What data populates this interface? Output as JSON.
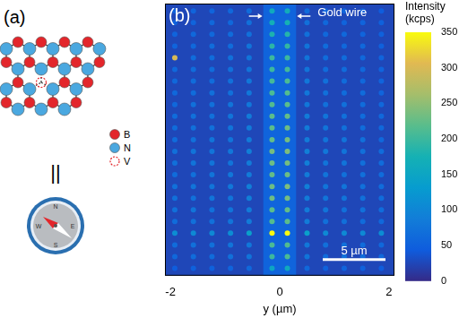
{
  "panel_a": {
    "label": "(a)",
    "legend": [
      {
        "text": "B",
        "color": "#e3262b",
        "marker": "filled"
      },
      {
        "text": "N",
        "color": "#4aa8e0",
        "marker": "filled"
      },
      {
        "text": "V",
        "color": "#e3262b",
        "marker": "dashed"
      }
    ],
    "relation": "||",
    "compass": [
      "N",
      "E",
      "S",
      "W"
    ]
  },
  "chart_data": {
    "type": "heatmap",
    "label": "(b)",
    "xlabel": "y (µm)",
    "x": [
      -1.92,
      -1.58,
      -1.24,
      -0.9,
      -0.56,
      -0.14,
      0.14,
      0.5,
      0.84,
      1.18,
      1.52,
      1.86
    ],
    "y": [
      0.6,
      1.55,
      2.5,
      3.45,
      4.4,
      5.35,
      6.3,
      7.25,
      8.2,
      9.15,
      10.1,
      11.05,
      12.0,
      12.95,
      13.9,
      14.85,
      15.8,
      16.75,
      17.7,
      18.65,
      19.6,
      20.55,
      21.5
    ],
    "cells": [
      [
        45,
        50,
        50,
        55,
        60,
        150,
        160,
        60,
        50,
        55,
        50,
        45
      ],
      [
        60,
        65,
        65,
        70,
        75,
        200,
        210,
        75,
        65,
        70,
        65,
        60
      ],
      [
        65,
        70,
        70,
        75,
        80,
        210,
        215,
        80,
        70,
        70,
        65,
        60
      ],
      [
        110,
        105,
        105,
        110,
        140,
        350,
        350,
        140,
        105,
        105,
        105,
        110
      ],
      [
        65,
        70,
        70,
        75,
        85,
        215,
        220,
        85,
        70,
        70,
        65,
        60
      ],
      [
        70,
        75,
        70,
        75,
        85,
        220,
        225,
        85,
        75,
        70,
        70,
        65
      ],
      [
        70,
        70,
        75,
        75,
        90,
        230,
        235,
        85,
        75,
        75,
        70,
        65
      ],
      [
        70,
        75,
        75,
        80,
        90,
        230,
        240,
        90,
        75,
        75,
        70,
        65
      ],
      [
        65,
        70,
        75,
        80,
        85,
        225,
        230,
        85,
        75,
        70,
        70,
        65
      ],
      [
        70,
        75,
        75,
        75,
        85,
        230,
        235,
        90,
        75,
        75,
        70,
        65
      ],
      [
        70,
        75,
        75,
        80,
        90,
        235,
        240,
        90,
        80,
        75,
        70,
        65
      ],
      [
        65,
        70,
        75,
        75,
        85,
        225,
        235,
        85,
        75,
        75,
        70,
        60
      ],
      [
        65,
        70,
        70,
        75,
        85,
        220,
        230,
        85,
        75,
        70,
        65,
        60
      ],
      [
        65,
        70,
        70,
        75,
        85,
        220,
        225,
        85,
        75,
        70,
        65,
        60
      ],
      [
        60,
        70,
        70,
        75,
        80,
        215,
        220,
        80,
        70,
        70,
        65,
        60
      ],
      [
        60,
        65,
        70,
        70,
        80,
        210,
        215,
        80,
        70,
        65,
        65,
        55
      ],
      [
        60,
        65,
        65,
        70,
        80,
        205,
        210,
        80,
        70,
        65,
        60,
        55
      ],
      [
        60,
        65,
        65,
        70,
        75,
        200,
        205,
        75,
        65,
        65,
        60,
        55
      ],
      [
        300,
        65,
        65,
        70,
        75,
        200,
        200,
        75,
        65,
        65,
        60,
        55
      ],
      [
        55,
        60,
        65,
        65,
        75,
        190,
        195,
        75,
        65,
        60,
        60,
        50
      ],
      [
        55,
        60,
        60,
        65,
        70,
        180,
        185,
        70,
        60,
        60,
        55,
        50
      ],
      [
        50,
        55,
        60,
        60,
        70,
        170,
        175,
        70,
        60,
        55,
        55,
        50
      ],
      [
        50,
        55,
        55,
        60,
        65,
        160,
        165,
        65,
        55,
        55,
        50,
        45
      ]
    ],
    "xlim": [
      -2.1,
      2.1
    ],
    "xticks": [
      -2,
      0,
      2
    ],
    "ylim": [
      0,
      22.1
    ],
    "tick_labels": "x",
    "grid": false,
    "background": 25,
    "annotations": [
      {
        "text": "Gold wire",
        "x_range": [
          -0.3,
          0.3
        ],
        "value": 55
      }
    ],
    "scale_bar": "5 µm",
    "colorbar": {
      "title": [
        "Intensity",
        "(kcps)"
      ],
      "range": [
        0,
        350
      ],
      "ticks": [
        0,
        50,
        100,
        150,
        200,
        250,
        300,
        350
      ]
    }
  }
}
